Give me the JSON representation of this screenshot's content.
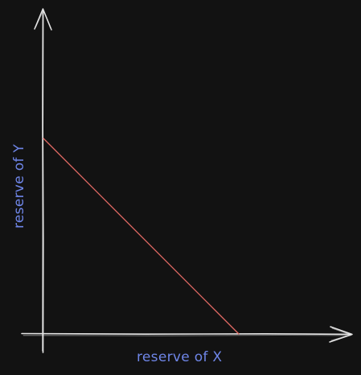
{
  "diagram": {
    "x_axis_label": "reserve of X",
    "y_axis_label": "reserve of Y",
    "colors": {
      "background": "#121212",
      "axes": "#e6e6e6",
      "curve": "#e36a64",
      "labels": "#6f86e8"
    }
  }
}
